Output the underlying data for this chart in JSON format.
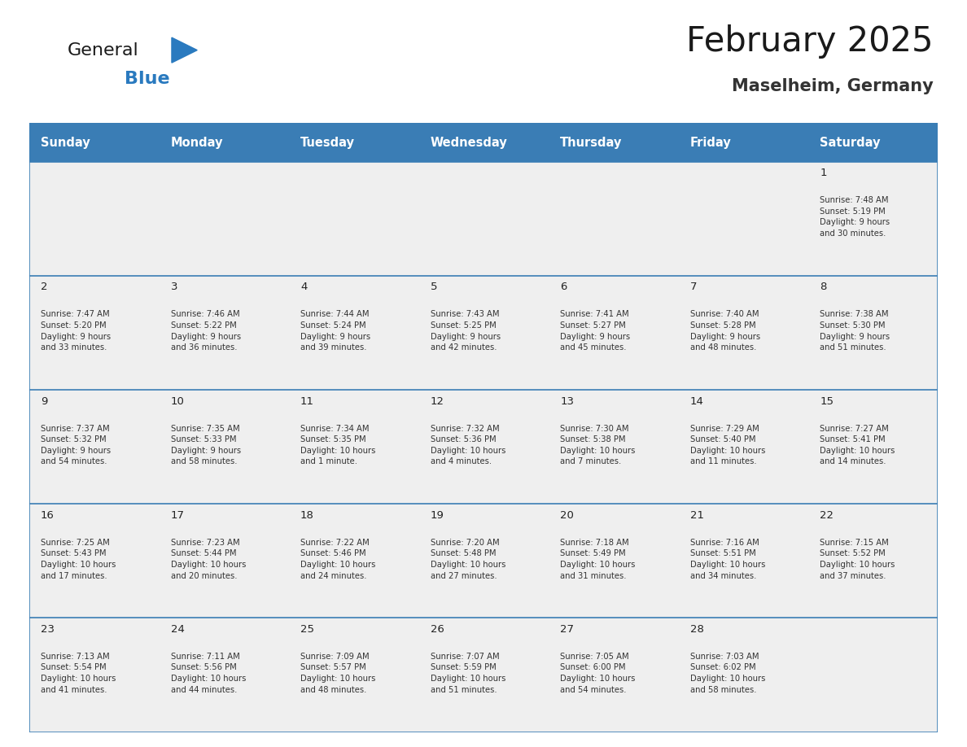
{
  "title": "February 2025",
  "subtitle": "Maselheim, Germany",
  "days_of_week": [
    "Sunday",
    "Monday",
    "Tuesday",
    "Wednesday",
    "Thursday",
    "Friday",
    "Saturday"
  ],
  "header_bg": "#3a7db5",
  "header_text_color": "#ffffff",
  "cell_bg": "#efefef",
  "row_divider_color": "#3a7db5",
  "day_number_color": "#222222",
  "cell_text_color": "#333333",
  "title_color": "#1a1a1a",
  "subtitle_color": "#333333",
  "background_color": "#ffffff",
  "logo_general_color": "#1a1a1a",
  "logo_blue_color": "#2a7abf",
  "logo_triangle_color": "#2a7abf",
  "week_rows": [
    [
      {
        "day": null,
        "text": ""
      },
      {
        "day": null,
        "text": ""
      },
      {
        "day": null,
        "text": ""
      },
      {
        "day": null,
        "text": ""
      },
      {
        "day": null,
        "text": ""
      },
      {
        "day": null,
        "text": ""
      },
      {
        "day": 1,
        "text": "Sunrise: 7:48 AM\nSunset: 5:19 PM\nDaylight: 9 hours\nand 30 minutes."
      }
    ],
    [
      {
        "day": 2,
        "text": "Sunrise: 7:47 AM\nSunset: 5:20 PM\nDaylight: 9 hours\nand 33 minutes."
      },
      {
        "day": 3,
        "text": "Sunrise: 7:46 AM\nSunset: 5:22 PM\nDaylight: 9 hours\nand 36 minutes."
      },
      {
        "day": 4,
        "text": "Sunrise: 7:44 AM\nSunset: 5:24 PM\nDaylight: 9 hours\nand 39 minutes."
      },
      {
        "day": 5,
        "text": "Sunrise: 7:43 AM\nSunset: 5:25 PM\nDaylight: 9 hours\nand 42 minutes."
      },
      {
        "day": 6,
        "text": "Sunrise: 7:41 AM\nSunset: 5:27 PM\nDaylight: 9 hours\nand 45 minutes."
      },
      {
        "day": 7,
        "text": "Sunrise: 7:40 AM\nSunset: 5:28 PM\nDaylight: 9 hours\nand 48 minutes."
      },
      {
        "day": 8,
        "text": "Sunrise: 7:38 AM\nSunset: 5:30 PM\nDaylight: 9 hours\nand 51 minutes."
      }
    ],
    [
      {
        "day": 9,
        "text": "Sunrise: 7:37 AM\nSunset: 5:32 PM\nDaylight: 9 hours\nand 54 minutes."
      },
      {
        "day": 10,
        "text": "Sunrise: 7:35 AM\nSunset: 5:33 PM\nDaylight: 9 hours\nand 58 minutes."
      },
      {
        "day": 11,
        "text": "Sunrise: 7:34 AM\nSunset: 5:35 PM\nDaylight: 10 hours\nand 1 minute."
      },
      {
        "day": 12,
        "text": "Sunrise: 7:32 AM\nSunset: 5:36 PM\nDaylight: 10 hours\nand 4 minutes."
      },
      {
        "day": 13,
        "text": "Sunrise: 7:30 AM\nSunset: 5:38 PM\nDaylight: 10 hours\nand 7 minutes."
      },
      {
        "day": 14,
        "text": "Sunrise: 7:29 AM\nSunset: 5:40 PM\nDaylight: 10 hours\nand 11 minutes."
      },
      {
        "day": 15,
        "text": "Sunrise: 7:27 AM\nSunset: 5:41 PM\nDaylight: 10 hours\nand 14 minutes."
      }
    ],
    [
      {
        "day": 16,
        "text": "Sunrise: 7:25 AM\nSunset: 5:43 PM\nDaylight: 10 hours\nand 17 minutes."
      },
      {
        "day": 17,
        "text": "Sunrise: 7:23 AM\nSunset: 5:44 PM\nDaylight: 10 hours\nand 20 minutes."
      },
      {
        "day": 18,
        "text": "Sunrise: 7:22 AM\nSunset: 5:46 PM\nDaylight: 10 hours\nand 24 minutes."
      },
      {
        "day": 19,
        "text": "Sunrise: 7:20 AM\nSunset: 5:48 PM\nDaylight: 10 hours\nand 27 minutes."
      },
      {
        "day": 20,
        "text": "Sunrise: 7:18 AM\nSunset: 5:49 PM\nDaylight: 10 hours\nand 31 minutes."
      },
      {
        "day": 21,
        "text": "Sunrise: 7:16 AM\nSunset: 5:51 PM\nDaylight: 10 hours\nand 34 minutes."
      },
      {
        "day": 22,
        "text": "Sunrise: 7:15 AM\nSunset: 5:52 PM\nDaylight: 10 hours\nand 37 minutes."
      }
    ],
    [
      {
        "day": 23,
        "text": "Sunrise: 7:13 AM\nSunset: 5:54 PM\nDaylight: 10 hours\nand 41 minutes."
      },
      {
        "day": 24,
        "text": "Sunrise: 7:11 AM\nSunset: 5:56 PM\nDaylight: 10 hours\nand 44 minutes."
      },
      {
        "day": 25,
        "text": "Sunrise: 7:09 AM\nSunset: 5:57 PM\nDaylight: 10 hours\nand 48 minutes."
      },
      {
        "day": 26,
        "text": "Sunrise: 7:07 AM\nSunset: 5:59 PM\nDaylight: 10 hours\nand 51 minutes."
      },
      {
        "day": 27,
        "text": "Sunrise: 7:05 AM\nSunset: 6:00 PM\nDaylight: 10 hours\nand 54 minutes."
      },
      {
        "day": 28,
        "text": "Sunrise: 7:03 AM\nSunset: 6:02 PM\nDaylight: 10 hours\nand 58 minutes."
      },
      {
        "day": null,
        "text": ""
      }
    ]
  ]
}
